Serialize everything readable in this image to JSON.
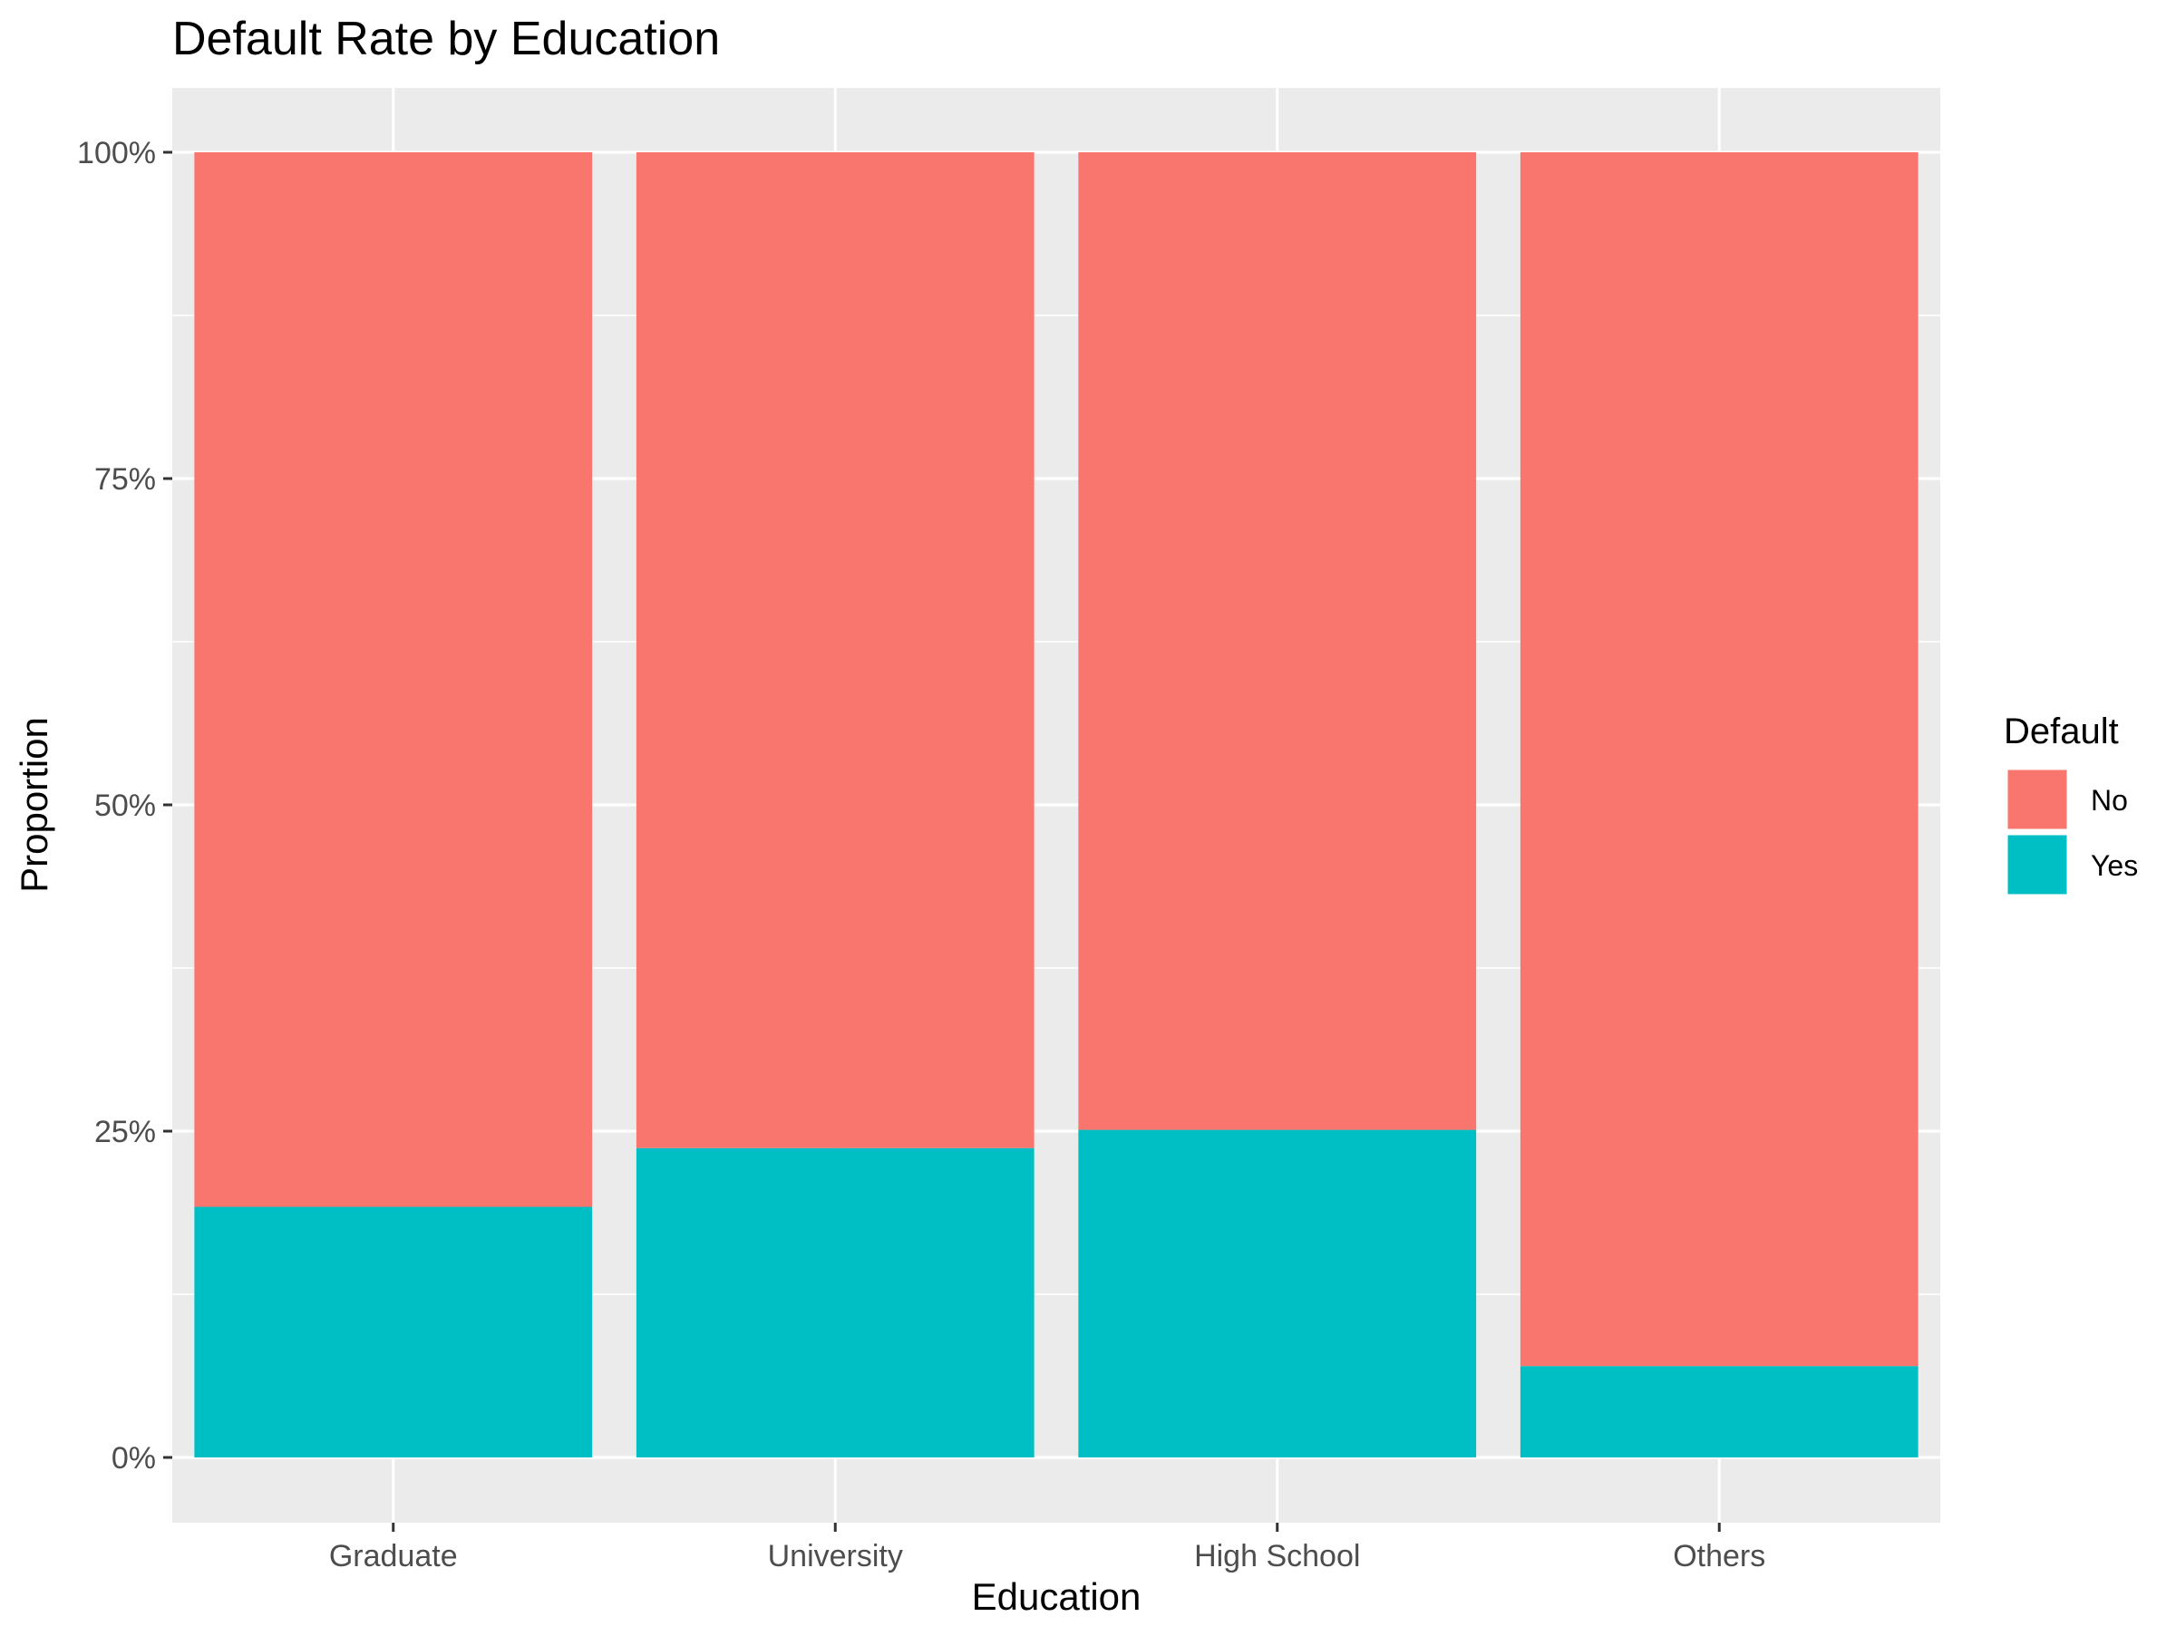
{
  "chart_data": {
    "type": "bar",
    "stacked": true,
    "title": "Default Rate by Education",
    "xlabel": "Education",
    "ylabel": "Proportion",
    "categories": [
      "Graduate",
      "University",
      "High School",
      "Others"
    ],
    "series": [
      {
        "name": "No",
        "values": [
          0.808,
          0.763,
          0.749,
          0.93
        ],
        "color": "#F8766D"
      },
      {
        "name": "Yes",
        "values": [
          0.192,
          0.237,
          0.251,
          0.07
        ],
        "color": "#00BFC4"
      }
    ],
    "ylim": [
      0,
      1
    ],
    "y_ticks": [
      {
        "value": 0,
        "label": "0%"
      },
      {
        "value": 0.25,
        "label": "25%"
      },
      {
        "value": 0.5,
        "label": "50%"
      },
      {
        "value": 0.75,
        "label": "75%"
      },
      {
        "value": 1,
        "label": "100%"
      }
    ],
    "legend": {
      "title": "Default",
      "position": "right"
    },
    "grid": true,
    "panel_background": "#EBEBEB"
  }
}
